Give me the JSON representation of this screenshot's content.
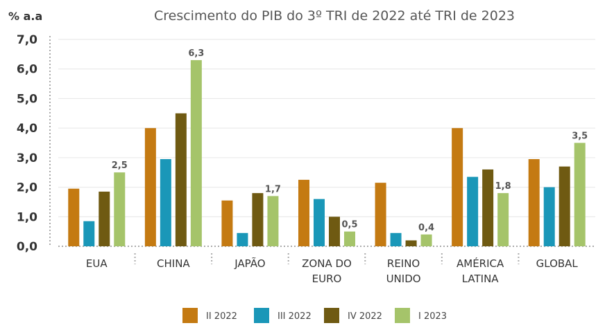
{
  "chart_data": {
    "type": "bar",
    "title": "Crescimento do PIB do 3º TRI de 2022 até TRI de 2023",
    "ylabel": "% a.a",
    "ylim": [
      0,
      7
    ],
    "yticks": [
      "0,0",
      "1,0",
      "2,0",
      "3,0",
      "4,0",
      "5,0",
      "6,0",
      "7,0"
    ],
    "grid": true,
    "legend_position": "bottom",
    "categories": [
      [
        "EUA"
      ],
      [
        "CHINA"
      ],
      [
        "JAPÃO"
      ],
      [
        "ZONA DO",
        "EURO"
      ],
      [
        "REINO",
        "UNIDO"
      ],
      [
        "AMÉRICA",
        "LATINA"
      ],
      [
        "GLOBAL"
      ]
    ],
    "series": [
      {
        "name": "II 2022",
        "color": "#C47A12",
        "values": [
          1.95,
          4.0,
          1.55,
          2.25,
          2.15,
          4.0,
          2.95
        ]
      },
      {
        "name": "III 2022",
        "color": "#1A97B8",
        "values": [
          0.85,
          2.95,
          0.45,
          1.6,
          0.45,
          2.35,
          2.0
        ]
      },
      {
        "name": "IV 2022",
        "color": "#6F5A12",
        "values": [
          1.85,
          4.5,
          1.8,
          1.0,
          0.2,
          2.6,
          2.7
        ]
      },
      {
        "name": "I 2023",
        "color": "#A5C46A",
        "values": [
          2.5,
          6.3,
          1.7,
          0.5,
          0.4,
          1.8,
          3.5
        ]
      }
    ],
    "data_labels": {
      "series_index": 3,
      "labels": [
        "2,5",
        "6,3",
        "1,7",
        "0,5",
        "0,4",
        "1,8",
        "3,5"
      ]
    }
  }
}
